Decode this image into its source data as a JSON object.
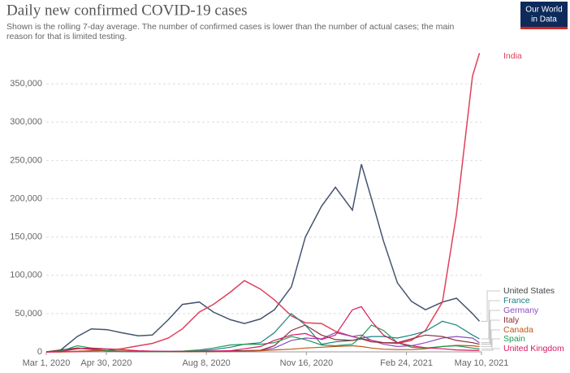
{
  "chart_data": {
    "type": "line",
    "title": "Daily new confirmed COVID-19 cases",
    "subtitle": "Shown is the rolling 7-day average. The number of confirmed cases is lower than the number of actual cases; the main reason for that is limited testing.",
    "logo": [
      "Our World",
      "in Data"
    ],
    "x": [
      "2020-03-01",
      "2020-03-15",
      "2020-04-01",
      "2020-04-15",
      "2020-05-01",
      "2020-05-15",
      "2020-06-01",
      "2020-06-15",
      "2020-07-01",
      "2020-07-15",
      "2020-08-01",
      "2020-08-15",
      "2020-09-01",
      "2020-09-15",
      "2020-10-01",
      "2020-10-15",
      "2020-11-01",
      "2020-11-15",
      "2020-12-01",
      "2020-12-15",
      "2021-01-01",
      "2021-01-10",
      "2021-01-20",
      "2021-02-01",
      "2021-02-15",
      "2021-03-01",
      "2021-03-15",
      "2021-04-01",
      "2021-04-15",
      "2021-05-01",
      "2021-05-08"
    ],
    "series": [
      {
        "name": "United States",
        "color": "#44546f",
        "values": [
          0,
          2000,
          20000,
          30000,
          29000,
          25000,
          21000,
          22000,
          42000,
          62000,
          65000,
          52000,
          42000,
          37000,
          43000,
          55000,
          85000,
          150000,
          190000,
          215000,
          185000,
          245000,
          200000,
          145000,
          90000,
          66000,
          55000,
          65000,
          70000,
          50000,
          40000
        ]
      },
      {
        "name": "India",
        "color": "#e0405a",
        "values": [
          0,
          0,
          200,
          1000,
          2000,
          4000,
          8000,
          11000,
          18000,
          30000,
          52000,
          62000,
          78000,
          93000,
          82000,
          68000,
          47000,
          38000,
          37000,
          27000,
          20000,
          17000,
          15000,
          12000,
          11000,
          15000,
          28000,
          65000,
          180000,
          360000,
          390000
        ]
      },
      {
        "name": "France",
        "color": "#18827f",
        "values": [
          0,
          500,
          5000,
          4000,
          1000,
          500,
          400,
          500,
          600,
          600,
          1200,
          3000,
          6000,
          10000,
          12000,
          25000,
          50000,
          35000,
          10000,
          13000,
          15000,
          18000,
          20000,
          20000,
          18000,
          22000,
          27000,
          40000,
          35000,
          22000,
          17000
        ]
      },
      {
        "name": "Germany",
        "color": "#8c4dbd",
        "values": [
          0,
          800,
          5000,
          3000,
          1000,
          600,
          400,
          400,
          400,
          500,
          700,
          1200,
          1300,
          1500,
          2000,
          5000,
          15000,
          18000,
          17000,
          25000,
          20000,
          22000,
          15000,
          10000,
          7000,
          8000,
          12000,
          18000,
          20000,
          18000,
          12000
        ]
      },
      {
        "name": "Italy",
        "color": "#883039",
        "values": [
          0,
          2500,
          5000,
          4000,
          2000,
          900,
          400,
          300,
          200,
          200,
          300,
          500,
          1200,
          1500,
          2000,
          8000,
          28000,
          35000,
          22000,
          16000,
          15000,
          17000,
          13000,
          12000,
          12000,
          17000,
          22000,
          20000,
          15000,
          12000,
          10000
        ]
      },
      {
        "name": "Canada",
        "color": "#c0561a",
        "values": [
          0,
          50,
          1000,
          1500,
          1500,
          1200,
          700,
          400,
          300,
          400,
          400,
          400,
          500,
          700,
          1500,
          2500,
          3500,
          5000,
          6000,
          7000,
          8000,
          7000,
          5000,
          3500,
          3000,
          3000,
          4000,
          7000,
          8500,
          8000,
          7000
        ]
      },
      {
        "name": "Spain",
        "color": "#1f9a53",
        "values": [
          0,
          1000,
          8000,
          5000,
          1500,
          500,
          300,
          300,
          300,
          1000,
          2500,
          5000,
          9000,
          10000,
          10000,
          12000,
          20000,
          16000,
          9000,
          8000,
          10000,
          20000,
          35000,
          28000,
          12000,
          6000,
          5000,
          7000,
          8000,
          5000,
          4000
        ]
      },
      {
        "name": "United Kingdom",
        "color": "#d6175e",
        "values": [
          0,
          200,
          4000,
          5000,
          4000,
          3000,
          1500,
          1000,
          700,
          600,
          700,
          1000,
          1500,
          4000,
          7000,
          15000,
          22000,
          24000,
          16000,
          22000,
          55000,
          59000,
          40000,
          22000,
          12000,
          8000,
          5500,
          4000,
          2500,
          2000,
          2000
        ]
      }
    ],
    "xlim": [
      "2020-03-01",
      "2021-05-10"
    ],
    "xticks": [
      {
        "value": "2020-03-01",
        "label": "Mar 1, 2020"
      },
      {
        "value": "2020-04-30",
        "label": "Apr 30, 2020"
      },
      {
        "value": "2020-08-08",
        "label": "Aug 8, 2020"
      },
      {
        "value": "2020-11-16",
        "label": "Nov 16, 2020"
      },
      {
        "value": "2021-02-24",
        "label": "Feb 24, 2021"
      },
      {
        "value": "2021-05-10",
        "label": "May 10, 2021"
      }
    ],
    "ylim": [
      0,
      400000
    ],
    "yticks": [
      0,
      {
        "value": 50000,
        "label": "50,000"
      },
      {
        "value": 100000,
        "label": "100,000"
      },
      {
        "value": 150000,
        "label": "150,000"
      },
      {
        "value": 200000,
        "label": "200,000"
      },
      {
        "value": 250000,
        "label": "250,000"
      },
      {
        "value": 300000,
        "label": "300,000"
      },
      {
        "value": 350000,
        "label": "350,000"
      }
    ],
    "grid": true
  }
}
